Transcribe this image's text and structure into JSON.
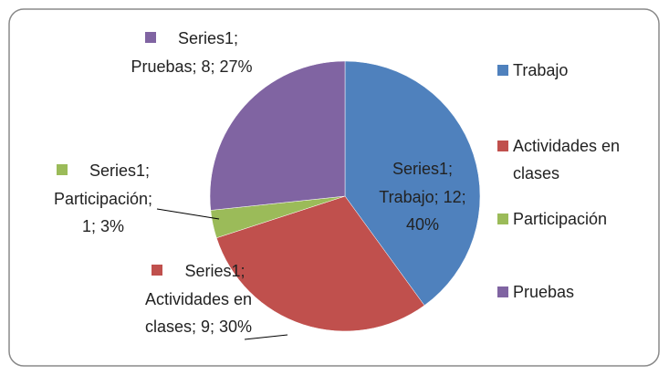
{
  "chart_data": {
    "type": "pie",
    "series_name": "Series1",
    "categories": [
      "Trabajo",
      "Actividades en clases",
      "Participación",
      "Pruebas"
    ],
    "values": [
      12,
      9,
      1,
      8
    ],
    "value_labels": [
      "Series1; Trabajo; 12; 40%",
      "Series1; Actividades en clases; 9; 30%",
      "Series1; Participación; 1; 3%",
      "Series1; Pruebas; 8; 27%"
    ],
    "colors": [
      "#4f81bd",
      "#c0504d",
      "#9bbb59",
      "#8064a2"
    ],
    "legend": "right"
  }
}
